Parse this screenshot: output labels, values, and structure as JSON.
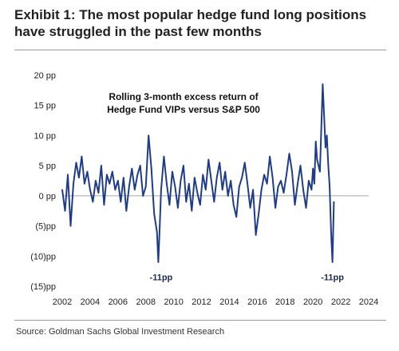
{
  "header": {
    "title": "Exhibit 1: The most popular hedge fund long positions have struggled in the past few months"
  },
  "footer": {
    "source": "Source: Goldman Sachs Global Investment Research"
  },
  "chart_data": {
    "type": "line",
    "title_lines": [
      "Rolling 3-month excess return of",
      "Hedge Fund VIPs versus S&P 500"
    ],
    "xlabel": "",
    "ylabel": "",
    "xlim": [
      2002,
      2024
    ],
    "ylim": [
      -15,
      20
    ],
    "x_ticks": [
      2002,
      2004,
      2006,
      2008,
      2010,
      2012,
      2014,
      2016,
      2018,
      2020,
      2022,
      2024
    ],
    "y_ticks": [
      {
        "value": 20,
        "label": "20 pp"
      },
      {
        "value": 15,
        "label": "15 pp"
      },
      {
        "value": 10,
        "label": "10 pp"
      },
      {
        "value": 5,
        "label": "5 pp"
      },
      {
        "value": 0,
        "label": "0 pp"
      },
      {
        "value": -5,
        "label": "(5)pp"
      },
      {
        "value": -10,
        "label": "(10)pp"
      },
      {
        "value": -15,
        "label": "(15)pp"
      }
    ],
    "grid": false,
    "zero_line": true,
    "colors": {
      "series": "#1f3c88",
      "zero_line": "#a8a8a8",
      "axis": "#555555"
    },
    "annotations": [
      {
        "text": "-11pp",
        "x": 2009.1,
        "y": -13.5
      },
      {
        "text": "-11pp",
        "x": 2021.4,
        "y": -13.5
      }
    ],
    "series": [
      {
        "x": [
          2002.0,
          2002.2,
          2002.4,
          2002.6,
          2002.8,
          2003.0,
          2003.2,
          2003.4,
          2003.6,
          2003.8,
          2004.0,
          2004.2,
          2004.4,
          2004.6,
          2004.8,
          2005.0,
          2005.2,
          2005.4,
          2005.6,
          2005.8,
          2006.0,
          2006.2,
          2006.4,
          2006.6,
          2006.8,
          2007.0,
          2007.2,
          2007.4,
          2007.6,
          2007.8,
          2008.0,
          2008.2,
          2008.4,
          2008.6,
          2008.8,
          2008.9,
          2009.0,
          2009.1,
          2009.3,
          2009.5,
          2009.7,
          2009.9,
          2010.1,
          2010.3,
          2010.5,
          2010.7,
          2010.9,
          2011.1,
          2011.3,
          2011.5,
          2011.7,
          2011.9,
          2012.1,
          2012.3,
          2012.5,
          2012.7,
          2012.9,
          2013.1,
          2013.3,
          2013.5,
          2013.7,
          2013.9,
          2014.1,
          2014.3,
          2014.5,
          2014.7,
          2014.9,
          2015.1,
          2015.3,
          2015.5,
          2015.7,
          2015.9,
          2016.1,
          2016.3,
          2016.5,
          2016.7,
          2016.9,
          2017.1,
          2017.3,
          2017.5,
          2017.7,
          2017.9,
          2018.1,
          2018.3,
          2018.5,
          2018.7,
          2018.9,
          2019.1,
          2019.3,
          2019.5,
          2019.7,
          2019.9,
          2020.0,
          2020.1,
          2020.2,
          2020.3,
          2020.5,
          2020.7,
          2020.9,
          2021.0,
          2021.1,
          2021.2,
          2021.3,
          2021.4,
          2021.5
        ],
        "values": [
          1.0,
          -2.5,
          3.5,
          -5.0,
          2.0,
          5.5,
          3.0,
          6.5,
          2.0,
          4.0,
          1.0,
          -1.0,
          2.5,
          0.5,
          5.0,
          -1.5,
          3.5,
          2.0,
          4.0,
          1.0,
          2.5,
          -1.0,
          3.0,
          -2.5,
          1.5,
          4.5,
          1.0,
          3.5,
          5.0,
          0.0,
          1.5,
          10.0,
          4.5,
          -3.0,
          -6.0,
          -11.0,
          -5.0,
          1.0,
          6.5,
          2.0,
          -1.5,
          4.0,
          1.5,
          -2.0,
          2.5,
          5.0,
          -1.0,
          2.0,
          -2.5,
          3.0,
          0.5,
          -1.5,
          3.5,
          1.0,
          6.0,
          2.5,
          -1.0,
          3.0,
          5.5,
          1.0,
          4.0,
          0.0,
          2.5,
          -1.5,
          -3.5,
          1.5,
          3.0,
          5.5,
          2.0,
          -2.0,
          1.0,
          -6.5,
          -3.0,
          1.0,
          3.5,
          2.0,
          6.5,
          3.0,
          -2.0,
          1.5,
          2.5,
          0.5,
          3.5,
          7.0,
          4.0,
          -1.5,
          2.0,
          5.0,
          1.0,
          -2.0,
          2.5,
          1.0,
          4.5,
          2.0,
          9.0,
          6.0,
          4.0,
          18.5,
          8.0,
          10.0,
          5.0,
          1.5,
          -6.0,
          -11.0,
          -1.0
        ]
      }
    ]
  }
}
